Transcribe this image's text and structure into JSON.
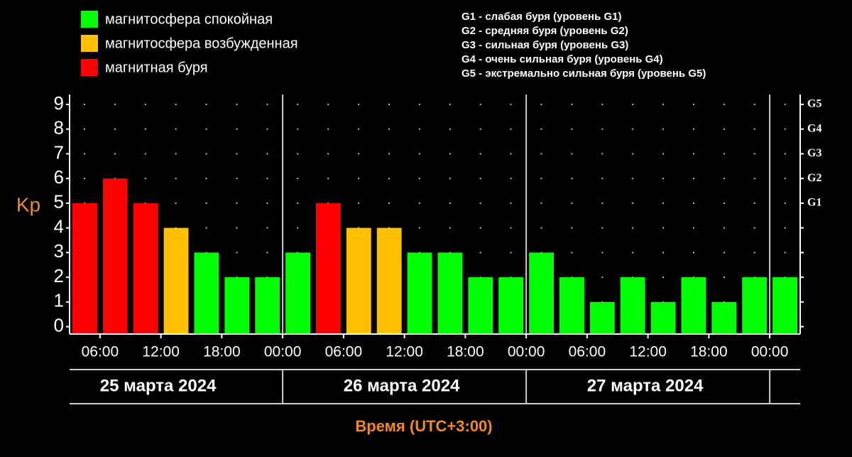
{
  "chart_data": {
    "type": "bar",
    "legend": [
      {
        "label": "магнитосфера спокойная",
        "color": "#00ff00"
      },
      {
        "label": "магнитосфера возбужденная",
        "color": "#ffc000"
      },
      {
        "label": "магнитная буря",
        "color": "#ff0000"
      }
    ],
    "storm_levels": [
      "G1 - слабая буря (уровень G1)",
      "G2 - средняя буря (уровень G2)",
      "G3 - сильная буря (уровень G3)",
      "G4 - очень сильная буря (уровень G4)",
      "G5 - экстремально сильная буря (уровень G5)"
    ],
    "y_label": "Kp",
    "x_label": "Время (UTC+3:00)",
    "day_labels": [
      "25 марта 2024",
      "26 марта 2024",
      "27 марта 2024"
    ],
    "x": [
      3,
      6,
      9,
      12,
      15,
      18,
      21,
      24,
      27,
      30,
      33,
      36,
      39,
      42,
      45,
      48,
      51,
      54,
      57,
      60,
      63,
      66,
      69,
      72
    ],
    "values": [
      5,
      6,
      5,
      4,
      3,
      2,
      2,
      3,
      5,
      4,
      4,
      3,
      3,
      2,
      2,
      3,
      2,
      1,
      2,
      1,
      2,
      1,
      2,
      2
    ],
    "colors": [
      "#ff0000",
      "#ff0000",
      "#ff0000",
      "#ffc000",
      "#00ff00",
      "#00ff00",
      "#00ff00",
      "#00ff00",
      "#ff0000",
      "#ffc000",
      "#ffc000",
      "#00ff00",
      "#00ff00",
      "#00ff00",
      "#00ff00",
      "#00ff00",
      "#00ff00",
      "#00ff00",
      "#00ff00",
      "#00ff00",
      "#00ff00",
      "#00ff00",
      "#00ff00",
      "#00ff00"
    ],
    "bar_width": 3,
    "xlim": [
      3,
      75
    ],
    "xticks": [
      {
        "value": 6,
        "label": "06:00"
      },
      {
        "value": 12,
        "label": "12:00"
      },
      {
        "value": 18,
        "label": "18:00"
      },
      {
        "value": 24,
        "label": "00:00"
      },
      {
        "value": 30,
        "label": "06:00"
      },
      {
        "value": 36,
        "label": "12:00"
      },
      {
        "value": 42,
        "label": "18:00"
      },
      {
        "value": 48,
        "label": "00:00"
      },
      {
        "value": 54,
        "label": "06:00"
      },
      {
        "value": 60,
        "label": "12:00"
      },
      {
        "value": 66,
        "label": "18:00"
      },
      {
        "value": 72,
        "label": "00:00"
      }
    ],
    "ylim": [
      -0.3,
      9.4
    ],
    "yticks": [
      0,
      1,
      2,
      3,
      4,
      5,
      6,
      7,
      8,
      9
    ],
    "y2lim": [
      -0.3,
      9.4
    ],
    "y2ticks": [
      {
        "value": 5,
        "label": "G1"
      },
      {
        "value": 6,
        "label": "G2"
      },
      {
        "value": 7,
        "label": "G3"
      },
      {
        "value": 8,
        "label": "G4"
      },
      {
        "value": 9,
        "label": "G5"
      }
    ],
    "grid": true
  }
}
